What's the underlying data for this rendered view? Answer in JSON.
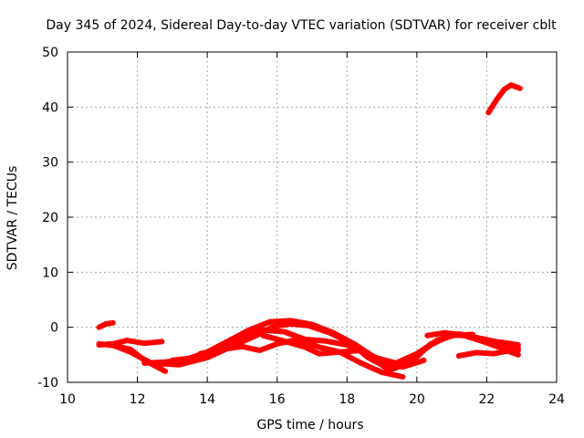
{
  "chart_data": {
    "type": "line",
    "title": "Day 345 of 2024, Sidereal Day-to-day VTEC variation (SDTVAR) for receiver cblt",
    "xlabel": "GPS time / hours",
    "ylabel": "SDTVAR / TECUs",
    "xlim": [
      10,
      24
    ],
    "ylim": [
      -10,
      50
    ],
    "xticks": [
      10,
      12,
      14,
      16,
      18,
      20,
      22,
      24
    ],
    "yticks": [
      -10,
      0,
      10,
      20,
      30,
      40,
      50
    ],
    "grid": true,
    "series_color": "#ff0000",
    "series": [
      {
        "name": "track-1",
        "x": [
          10.9,
          11.1,
          11.3
        ],
        "y": [
          0,
          0.6,
          0.8
        ]
      },
      {
        "name": "track-2",
        "x": [
          10.9,
          11.3,
          11.7,
          12.2,
          12.7
        ],
        "y": [
          -3.2,
          -3.0,
          -2.4,
          -2.9,
          -2.6
        ]
      },
      {
        "name": "track-3",
        "x": [
          10.9,
          11.3,
          11.8,
          12.2,
          12.8
        ],
        "y": [
          -3.0,
          -3.3,
          -4.0,
          -6.0,
          -8.0
        ]
      },
      {
        "name": "track-4",
        "x": [
          11.2,
          11.8,
          12.4,
          13.2,
          14.0,
          14.7,
          15.4,
          15.9,
          16.4,
          16.9,
          17.5,
          18.1,
          18.6,
          19.2,
          19.8,
          20.4,
          21.0,
          21.5,
          22.0,
          22.5,
          22.9
        ],
        "y": [
          -3.0,
          -4.5,
          -6.5,
          -6.8,
          -5.5,
          -3.5,
          -1.5,
          0.2,
          0.6,
          0.3,
          -1.0,
          -2.8,
          -5.5,
          -7.5,
          -6.0,
          -3.2,
          -1.3,
          -1.6,
          -2.4,
          -2.8,
          -3.2
        ]
      },
      {
        "name": "track-5",
        "x": [
          12.2,
          12.8,
          13.4,
          14.0,
          14.6,
          15.2,
          15.8,
          16.4,
          17.0,
          17.6,
          18.2,
          18.8,
          19.4,
          20.0,
          20.6,
          21.2,
          21.8,
          22.4,
          22.9
        ],
        "y": [
          -6.5,
          -6.3,
          -5.8,
          -4.5,
          -2.5,
          -0.5,
          1.0,
          1.2,
          0.5,
          -1.0,
          -3.0,
          -5.5,
          -6.5,
          -4.8,
          -2.3,
          -1.2,
          -2.0,
          -2.8,
          -3.8
        ]
      },
      {
        "name": "track-6",
        "x": [
          13.0,
          13.7,
          14.4,
          15.0,
          15.6,
          16.2,
          16.8,
          17.4,
          18.0,
          18.6,
          19.2,
          19.8,
          20.4,
          21.0,
          21.6
        ],
        "y": [
          -6.0,
          -5.5,
          -4.0,
          -2.0,
          -0.5,
          -0.8,
          -2.2,
          -2.5,
          -3.2,
          -5.0,
          -7.8,
          -6.5,
          -3.0,
          -1.5,
          -1.3
        ]
      },
      {
        "name": "track-7",
        "x": [
          13.8,
          14.4,
          15.0,
          15.5,
          16.0,
          16.6,
          17.2,
          17.8,
          18.4,
          19.0,
          19.6
        ],
        "y": [
          -4.8,
          -4.0,
          -3.5,
          -4.2,
          -3.0,
          -2.2,
          -3.6,
          -4.5,
          -6.5,
          -8.2,
          -9.0
        ]
      },
      {
        "name": "track-8",
        "x": [
          15.6,
          16.2,
          16.8,
          17.2,
          17.8,
          18.4,
          19.0,
          19.6,
          20.2
        ],
        "y": [
          -1.5,
          -2.5,
          -3.6,
          -4.8,
          -4.5,
          -4.2,
          -6.0,
          -7.2,
          -6.0
        ]
      },
      {
        "name": "track-9",
        "x": [
          20.3,
          20.8,
          21.3,
          21.8,
          22.3,
          22.9
        ],
        "y": [
          -1.5,
          -1.0,
          -1.4,
          -2.4,
          -3.5,
          -4.2
        ]
      },
      {
        "name": "track-10",
        "x": [
          21.2,
          21.7,
          22.2,
          22.6,
          22.9
        ],
        "y": [
          -5.2,
          -4.6,
          -4.8,
          -4.3,
          -5.0
        ]
      },
      {
        "name": "track-11",
        "x": [
          22.05,
          22.3,
          22.5,
          22.7,
          22.95
        ],
        "y": [
          39.0,
          41.5,
          43.2,
          44.0,
          43.4
        ]
      }
    ]
  }
}
